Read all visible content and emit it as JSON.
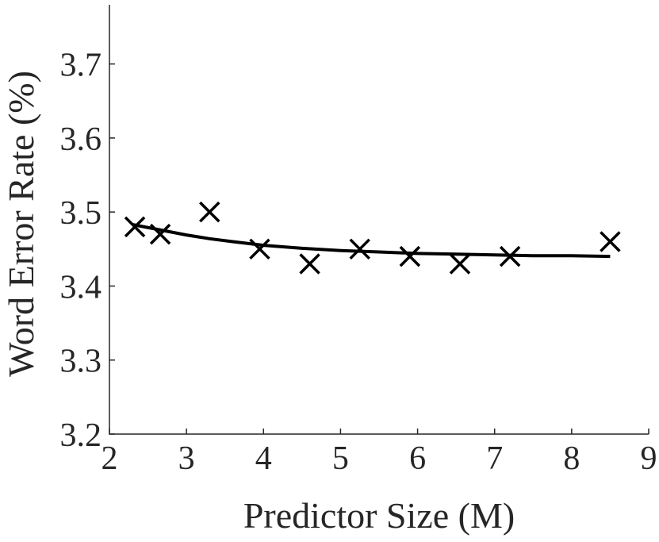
{
  "chart_data": {
    "type": "scatter",
    "title": "",
    "xlabel": "Predictor Size (M)",
    "ylabel": "Word Error Rate (%)",
    "xlim": [
      2,
      9
    ],
    "ylim": [
      3.2,
      3.78
    ],
    "xticks": [
      2,
      3,
      4,
      5,
      6,
      7,
      8,
      9
    ],
    "yticks": [
      3.2,
      3.3,
      3.4,
      3.5,
      3.6,
      3.7
    ],
    "yticklabels": [
      "3.2",
      "3.3",
      "3.4",
      "3.5",
      "3.6",
      "3.7"
    ],
    "grid": false,
    "legend": "none",
    "series": [
      {
        "kind": "markers",
        "marker": "x",
        "color": "#000000",
        "x": [
          2.33,
          2.66,
          3.3,
          3.95,
          4.6,
          5.25,
          5.9,
          6.55,
          7.2,
          8.5
        ],
        "y": [
          3.48,
          3.47,
          3.5,
          3.45,
          3.43,
          3.45,
          3.44,
          3.43,
          3.44,
          3.46
        ]
      },
      {
        "kind": "fit-line",
        "color": "#000000",
        "x": [
          2.3,
          2.6,
          3.0,
          3.3,
          3.6,
          4.0,
          4.5,
          5.0,
          5.5,
          6.0,
          6.5,
          7.0,
          7.5,
          8.0,
          8.5
        ],
        "y": [
          3.483,
          3.477,
          3.469,
          3.464,
          3.46,
          3.455,
          3.451,
          3.448,
          3.446,
          3.444,
          3.443,
          3.442,
          3.441,
          3.441,
          3.44
        ]
      }
    ]
  }
}
